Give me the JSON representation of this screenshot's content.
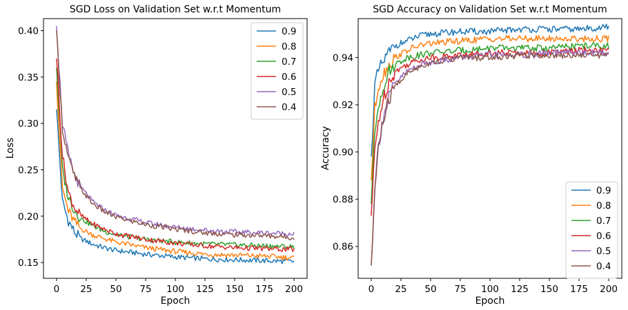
{
  "chart_data": [
    {
      "type": "line",
      "title": "SGD Loss on Validation Set w.r.t Momentum",
      "xlabel": "Epoch",
      "ylabel": "Loss",
      "xlim": [
        -11,
        211
      ],
      "ylim": [
        0.133,
        0.413
      ],
      "xticks": [
        0,
        25,
        50,
        75,
        100,
        125,
        150,
        175,
        200
      ],
      "yticks": [
        0.15,
        0.2,
        0.25,
        0.3,
        0.35,
        0.4
      ],
      "ytick_format": "2",
      "legend_position": "top-right",
      "grid": false,
      "series": [
        {
          "name": "0.9",
          "color": "#1f77b4",
          "values": [
            {
              "x": 0,
              "y": 0.315
            },
            {
              "x": 5,
              "y": 0.215
            },
            {
              "x": 10,
              "y": 0.195
            },
            {
              "x": 15,
              "y": 0.183
            },
            {
              "x": 20,
              "y": 0.176
            },
            {
              "x": 30,
              "y": 0.17
            },
            {
              "x": 40,
              "y": 0.166
            },
            {
              "x": 50,
              "y": 0.163
            },
            {
              "x": 75,
              "y": 0.159
            },
            {
              "x": 100,
              "y": 0.156
            },
            {
              "x": 125,
              "y": 0.154
            },
            {
              "x": 150,
              "y": 0.153
            },
            {
              "x": 175,
              "y": 0.152
            },
            {
              "x": 200,
              "y": 0.151
            }
          ]
        },
        {
          "name": "0.8",
          "color": "#ff7f0e",
          "values": [
            {
              "x": 0,
              "y": 0.345
            },
            {
              "x": 5,
              "y": 0.23
            },
            {
              "x": 10,
              "y": 0.205
            },
            {
              "x": 15,
              "y": 0.194
            },
            {
              "x": 20,
              "y": 0.187
            },
            {
              "x": 30,
              "y": 0.18
            },
            {
              "x": 40,
              "y": 0.176
            },
            {
              "x": 50,
              "y": 0.172
            },
            {
              "x": 75,
              "y": 0.166
            },
            {
              "x": 100,
              "y": 0.162
            },
            {
              "x": 125,
              "y": 0.159
            },
            {
              "x": 150,
              "y": 0.158
            },
            {
              "x": 175,
              "y": 0.157
            },
            {
              "x": 200,
              "y": 0.155
            }
          ]
        },
        {
          "name": "0.7",
          "color": "#2ca02c",
          "values": [
            {
              "x": 0,
              "y": 0.36
            },
            {
              "x": 5,
              "y": 0.25
            },
            {
              "x": 10,
              "y": 0.22
            },
            {
              "x": 15,
              "y": 0.207
            },
            {
              "x": 20,
              "y": 0.198
            },
            {
              "x": 30,
              "y": 0.19
            },
            {
              "x": 40,
              "y": 0.184
            },
            {
              "x": 50,
              "y": 0.18
            },
            {
              "x": 75,
              "y": 0.175
            },
            {
              "x": 100,
              "y": 0.172
            },
            {
              "x": 125,
              "y": 0.17
            },
            {
              "x": 150,
              "y": 0.169
            },
            {
              "x": 175,
              "y": 0.168
            },
            {
              "x": 200,
              "y": 0.167
            }
          ]
        },
        {
          "name": "0.6",
          "color": "#d62728",
          "values": [
            {
              "x": 0,
              "y": 0.37
            },
            {
              "x": 5,
              "y": 0.265
            },
            {
              "x": 10,
              "y": 0.225
            },
            {
              "x": 15,
              "y": 0.21
            },
            {
              "x": 20,
              "y": 0.201
            },
            {
              "x": 30,
              "y": 0.192
            },
            {
              "x": 40,
              "y": 0.186
            },
            {
              "x": 50,
              "y": 0.181
            },
            {
              "x": 75,
              "y": 0.175
            },
            {
              "x": 100,
              "y": 0.171
            },
            {
              "x": 125,
              "y": 0.168
            },
            {
              "x": 150,
              "y": 0.166
            },
            {
              "x": 175,
              "y": 0.165
            },
            {
              "x": 200,
              "y": 0.164
            }
          ]
        },
        {
          "name": "0.5",
          "color": "#9467bd",
          "values": [
            {
              "x": 0,
              "y": 0.405
            },
            {
              "x": 5,
              "y": 0.3
            },
            {
              "x": 10,
              "y": 0.265
            },
            {
              "x": 15,
              "y": 0.245
            },
            {
              "x": 20,
              "y": 0.232
            },
            {
              "x": 30,
              "y": 0.216
            },
            {
              "x": 40,
              "y": 0.207
            },
            {
              "x": 50,
              "y": 0.201
            },
            {
              "x": 75,
              "y": 0.193
            },
            {
              "x": 100,
              "y": 0.188
            },
            {
              "x": 125,
              "y": 0.185
            },
            {
              "x": 150,
              "y": 0.183
            },
            {
              "x": 175,
              "y": 0.182
            },
            {
              "x": 200,
              "y": 0.181
            }
          ]
        },
        {
          "name": "0.4",
          "color": "#8c564b",
          "values": [
            {
              "x": 0,
              "y": 0.4
            },
            {
              "x": 5,
              "y": 0.295
            },
            {
              "x": 10,
              "y": 0.262
            },
            {
              "x": 15,
              "y": 0.243
            },
            {
              "x": 20,
              "y": 0.23
            },
            {
              "x": 30,
              "y": 0.214
            },
            {
              "x": 40,
              "y": 0.205
            },
            {
              "x": 50,
              "y": 0.199
            },
            {
              "x": 75,
              "y": 0.191
            },
            {
              "x": 100,
              "y": 0.186
            },
            {
              "x": 125,
              "y": 0.182
            },
            {
              "x": 150,
              "y": 0.18
            },
            {
              "x": 175,
              "y": 0.179
            },
            {
              "x": 200,
              "y": 0.177
            }
          ]
        }
      ]
    },
    {
      "type": "line",
      "title": "SGD Accuracy on Validation Set w.r.t Momentum",
      "xlabel": "Epoch",
      "ylabel": "Accuracy",
      "xlim": [
        -11,
        211
      ],
      "ylim": [
        0.8465,
        0.9565
      ],
      "xticks": [
        0,
        25,
        50,
        75,
        100,
        125,
        150,
        175,
        200
      ],
      "yticks": [
        0.86,
        0.88,
        0.9,
        0.92,
        0.94
      ],
      "ytick_format": "2",
      "legend_position": "bottom-right",
      "grid": false,
      "series": [
        {
          "name": "0.9",
          "color": "#1f77b4",
          "values": [
            {
              "x": 0,
              "y": 0.898
            },
            {
              "x": 3,
              "y": 0.928
            },
            {
              "x": 6,
              "y": 0.934
            },
            {
              "x": 10,
              "y": 0.938
            },
            {
              "x": 15,
              "y": 0.942
            },
            {
              "x": 20,
              "y": 0.945
            },
            {
              "x": 30,
              "y": 0.947
            },
            {
              "x": 40,
              "y": 0.949
            },
            {
              "x": 50,
              "y": 0.95
            },
            {
              "x": 75,
              "y": 0.951
            },
            {
              "x": 100,
              "y": 0.951
            },
            {
              "x": 125,
              "y": 0.952
            },
            {
              "x": 150,
              "y": 0.952
            },
            {
              "x": 175,
              "y": 0.952
            },
            {
              "x": 200,
              "y": 0.953
            }
          ]
        },
        {
          "name": "0.8",
          "color": "#ff7f0e",
          "values": [
            {
              "x": 0,
              "y": 0.888
            },
            {
              "x": 3,
              "y": 0.918
            },
            {
              "x": 6,
              "y": 0.928
            },
            {
              "x": 10,
              "y": 0.933
            },
            {
              "x": 15,
              "y": 0.937
            },
            {
              "x": 20,
              "y": 0.94
            },
            {
              "x": 30,
              "y": 0.943
            },
            {
              "x": 40,
              "y": 0.945
            },
            {
              "x": 50,
              "y": 0.946
            },
            {
              "x": 75,
              "y": 0.947
            },
            {
              "x": 100,
              "y": 0.948
            },
            {
              "x": 125,
              "y": 0.948
            },
            {
              "x": 150,
              "y": 0.948
            },
            {
              "x": 175,
              "y": 0.948
            },
            {
              "x": 200,
              "y": 0.948
            }
          ]
        },
        {
          "name": "0.7",
          "color": "#2ca02c",
          "values": [
            {
              "x": 0,
              "y": 0.878
            },
            {
              "x": 3,
              "y": 0.908
            },
            {
              "x": 6,
              "y": 0.92
            },
            {
              "x": 10,
              "y": 0.928
            },
            {
              "x": 15,
              "y": 0.934
            },
            {
              "x": 20,
              "y": 0.937
            },
            {
              "x": 30,
              "y": 0.94
            },
            {
              "x": 40,
              "y": 0.941
            },
            {
              "x": 50,
              "y": 0.942
            },
            {
              "x": 75,
              "y": 0.943
            },
            {
              "x": 100,
              "y": 0.944
            },
            {
              "x": 125,
              "y": 0.944
            },
            {
              "x": 150,
              "y": 0.944
            },
            {
              "x": 175,
              "y": 0.945
            },
            {
              "x": 200,
              "y": 0.945
            }
          ]
        },
        {
          "name": "0.6",
          "color": "#d62728",
          "values": [
            {
              "x": 0,
              "y": 0.873
            },
            {
              "x": 3,
              "y": 0.9
            },
            {
              "x": 6,
              "y": 0.913
            },
            {
              "x": 10,
              "y": 0.922
            },
            {
              "x": 15,
              "y": 0.93
            },
            {
              "x": 20,
              "y": 0.934
            },
            {
              "x": 30,
              "y": 0.937
            },
            {
              "x": 40,
              "y": 0.939
            },
            {
              "x": 50,
              "y": 0.94
            },
            {
              "x": 75,
              "y": 0.941
            },
            {
              "x": 100,
              "y": 0.942
            },
            {
              "x": 125,
              "y": 0.942
            },
            {
              "x": 150,
              "y": 0.942
            },
            {
              "x": 175,
              "y": 0.943
            },
            {
              "x": 200,
              "y": 0.943
            }
          ]
        },
        {
          "name": "0.5",
          "color": "#9467bd",
          "values": [
            {
              "x": 0,
              "y": 0.852
            },
            {
              "x": 3,
              "y": 0.885
            },
            {
              "x": 6,
              "y": 0.903
            },
            {
              "x": 10,
              "y": 0.914
            },
            {
              "x": 15,
              "y": 0.923
            },
            {
              "x": 20,
              "y": 0.929
            },
            {
              "x": 30,
              "y": 0.934
            },
            {
              "x": 40,
              "y": 0.937
            },
            {
              "x": 50,
              "y": 0.938
            },
            {
              "x": 75,
              "y": 0.94
            },
            {
              "x": 100,
              "y": 0.941
            },
            {
              "x": 125,
              "y": 0.941
            },
            {
              "x": 150,
              "y": 0.942
            },
            {
              "x": 175,
              "y": 0.942
            },
            {
              "x": 200,
              "y": 0.942
            }
          ]
        },
        {
          "name": "0.4",
          "color": "#8c564b",
          "values": [
            {
              "x": 0,
              "y": 0.852
            },
            {
              "x": 3,
              "y": 0.884
            },
            {
              "x": 6,
              "y": 0.902
            },
            {
              "x": 10,
              "y": 0.913
            },
            {
              "x": 15,
              "y": 0.922
            },
            {
              "x": 20,
              "y": 0.928
            },
            {
              "x": 30,
              "y": 0.933
            },
            {
              "x": 40,
              "y": 0.936
            },
            {
              "x": 50,
              "y": 0.938
            },
            {
              "x": 75,
              "y": 0.94
            },
            {
              "x": 100,
              "y": 0.94
            },
            {
              "x": 125,
              "y": 0.941
            },
            {
              "x": 150,
              "y": 0.941
            },
            {
              "x": 175,
              "y": 0.941
            },
            {
              "x": 200,
              "y": 0.941
            }
          ]
        }
      ]
    }
  ]
}
